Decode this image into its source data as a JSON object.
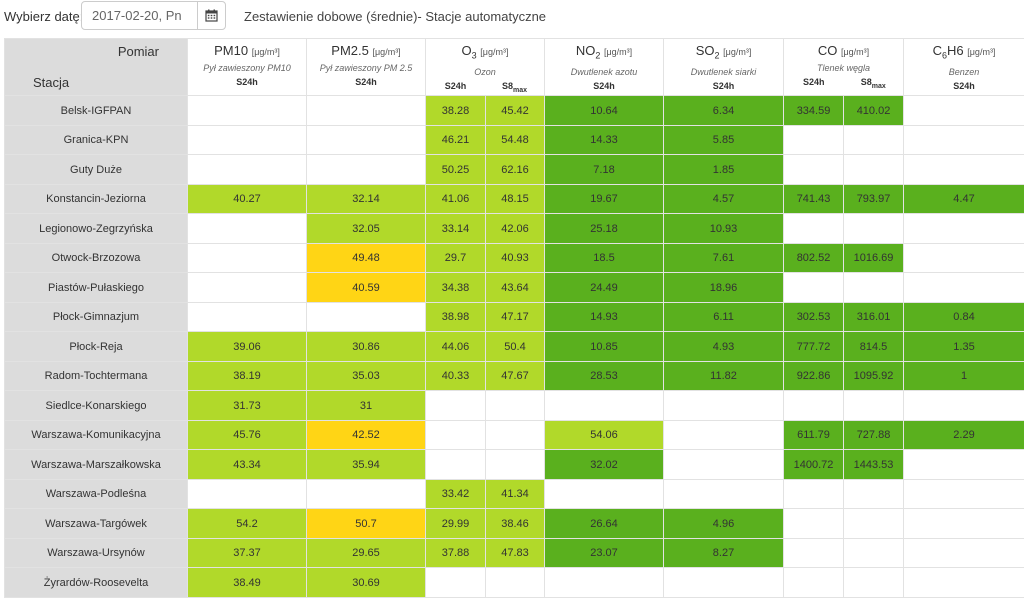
{
  "header": {
    "date_label": "Wybierz datę:",
    "date_value": "2017-02-20, Pn",
    "title": "Zestawienie dobowe (średnie)- Stacje automatyczne"
  },
  "corner": {
    "pomiar": "Pomiar",
    "stacja": "Stacja"
  },
  "pollutants": [
    {
      "name": "PM10",
      "sub": "",
      "tail": "",
      "unit": "[μg/m³]",
      "desc": "Pył zawieszony PM10",
      "cols": [
        {
          "main": "S24h",
          "sub": ""
        }
      ]
    },
    {
      "name": "PM2.5",
      "sub": "",
      "tail": "",
      "unit": "[μg/m³]",
      "desc": "Pył zawieszony PM 2.5",
      "cols": [
        {
          "main": "S24h",
          "sub": ""
        }
      ]
    },
    {
      "name": "O",
      "sub": "3",
      "tail": "",
      "unit": "[μg/m³]",
      "desc": "Ozon",
      "cols": [
        {
          "main": "S24h",
          "sub": ""
        },
        {
          "main": "S8",
          "sub": "max"
        }
      ]
    },
    {
      "name": "NO",
      "sub": "2",
      "tail": "",
      "unit": "[μg/m³]",
      "desc": "Dwutlenek azotu",
      "cols": [
        {
          "main": "S24h",
          "sub": ""
        }
      ]
    },
    {
      "name": "SO",
      "sub": "2",
      "tail": "",
      "unit": "[μg/m³]",
      "desc": "Dwutlenek siarki",
      "cols": [
        {
          "main": "S24h",
          "sub": ""
        }
      ]
    },
    {
      "name": "CO",
      "sub": "",
      "tail": "",
      "unit": "[μg/m³]",
      "desc": "Tlenek węgla",
      "cols": [
        {
          "main": "S24h",
          "sub": ""
        },
        {
          "main": "S8",
          "sub": "max"
        }
      ]
    },
    {
      "name": "C",
      "sub": "6",
      "tail": "H6",
      "unit": "[μg/m³]",
      "desc": "Benzen",
      "cols": [
        {
          "main": "S24h",
          "sub": ""
        }
      ]
    }
  ],
  "legend_colors": {
    "lg": "#b1d92a",
    "dg": "#5ab01e",
    "y": "#ffd515",
    "w": "#ffffff"
  },
  "rows": [
    {
      "station": "Belsk-IGFPAN",
      "cells": [
        {
          "v": "",
          "c": "w"
        },
        {
          "v": "",
          "c": "w"
        },
        {
          "v": "38.28",
          "c": "lg"
        },
        {
          "v": "45.42",
          "c": "lg"
        },
        {
          "v": "10.64",
          "c": "dg"
        },
        {
          "v": "6.34",
          "c": "dg"
        },
        {
          "v": "334.59",
          "c": "dg"
        },
        {
          "v": "410.02",
          "c": "dg"
        },
        {
          "v": "",
          "c": "w"
        }
      ]
    },
    {
      "station": "Granica-KPN",
      "cells": [
        {
          "v": "",
          "c": "w"
        },
        {
          "v": "",
          "c": "w"
        },
        {
          "v": "46.21",
          "c": "lg"
        },
        {
          "v": "54.48",
          "c": "lg"
        },
        {
          "v": "14.33",
          "c": "dg"
        },
        {
          "v": "5.85",
          "c": "dg"
        },
        {
          "v": "",
          "c": "w"
        },
        {
          "v": "",
          "c": "w"
        },
        {
          "v": "",
          "c": "w"
        }
      ]
    },
    {
      "station": "Guty Duże",
      "cells": [
        {
          "v": "",
          "c": "w"
        },
        {
          "v": "",
          "c": "w"
        },
        {
          "v": "50.25",
          "c": "lg"
        },
        {
          "v": "62.16",
          "c": "lg"
        },
        {
          "v": "7.18",
          "c": "dg"
        },
        {
          "v": "1.85",
          "c": "dg"
        },
        {
          "v": "",
          "c": "w"
        },
        {
          "v": "",
          "c": "w"
        },
        {
          "v": "",
          "c": "w"
        }
      ]
    },
    {
      "station": "Konstancin-Jeziorna",
      "cells": [
        {
          "v": "40.27",
          "c": "lg"
        },
        {
          "v": "32.14",
          "c": "lg"
        },
        {
          "v": "41.06",
          "c": "lg"
        },
        {
          "v": "48.15",
          "c": "lg"
        },
        {
          "v": "19.67",
          "c": "dg"
        },
        {
          "v": "4.57",
          "c": "dg"
        },
        {
          "v": "741.43",
          "c": "dg"
        },
        {
          "v": "793.97",
          "c": "dg"
        },
        {
          "v": "4.47",
          "c": "dg"
        }
      ]
    },
    {
      "station": "Legionowo-Zegrzyńska",
      "cells": [
        {
          "v": "",
          "c": "w"
        },
        {
          "v": "32.05",
          "c": "lg"
        },
        {
          "v": "33.14",
          "c": "lg"
        },
        {
          "v": "42.06",
          "c": "lg"
        },
        {
          "v": "25.18",
          "c": "dg"
        },
        {
          "v": "10.93",
          "c": "dg"
        },
        {
          "v": "",
          "c": "w"
        },
        {
          "v": "",
          "c": "w"
        },
        {
          "v": "",
          "c": "w"
        }
      ]
    },
    {
      "station": "Otwock-Brzozowa",
      "cells": [
        {
          "v": "",
          "c": "w"
        },
        {
          "v": "49.48",
          "c": "y"
        },
        {
          "v": "29.7",
          "c": "lg"
        },
        {
          "v": "40.93",
          "c": "lg"
        },
        {
          "v": "18.5",
          "c": "dg"
        },
        {
          "v": "7.61",
          "c": "dg"
        },
        {
          "v": "802.52",
          "c": "dg"
        },
        {
          "v": "1016.69",
          "c": "dg"
        },
        {
          "v": "",
          "c": "w"
        }
      ]
    },
    {
      "station": "Piastów-Pułaskiego",
      "cells": [
        {
          "v": "",
          "c": "w"
        },
        {
          "v": "40.59",
          "c": "y"
        },
        {
          "v": "34.38",
          "c": "lg"
        },
        {
          "v": "43.64",
          "c": "lg"
        },
        {
          "v": "24.49",
          "c": "dg"
        },
        {
          "v": "18.96",
          "c": "dg"
        },
        {
          "v": "",
          "c": "w"
        },
        {
          "v": "",
          "c": "w"
        },
        {
          "v": "",
          "c": "w"
        }
      ]
    },
    {
      "station": "Płock-Gimnazjum",
      "cells": [
        {
          "v": "",
          "c": "w"
        },
        {
          "v": "",
          "c": "w"
        },
        {
          "v": "38.98",
          "c": "lg"
        },
        {
          "v": "47.17",
          "c": "lg"
        },
        {
          "v": "14.93",
          "c": "dg"
        },
        {
          "v": "6.11",
          "c": "dg"
        },
        {
          "v": "302.53",
          "c": "dg"
        },
        {
          "v": "316.01",
          "c": "dg"
        },
        {
          "v": "0.84",
          "c": "dg"
        }
      ]
    },
    {
      "station": "Płock-Reja",
      "cells": [
        {
          "v": "39.06",
          "c": "lg"
        },
        {
          "v": "30.86",
          "c": "lg"
        },
        {
          "v": "44.06",
          "c": "lg"
        },
        {
          "v": "50.4",
          "c": "lg"
        },
        {
          "v": "10.85",
          "c": "dg"
        },
        {
          "v": "4.93",
          "c": "dg"
        },
        {
          "v": "777.72",
          "c": "dg"
        },
        {
          "v": "814.5",
          "c": "dg"
        },
        {
          "v": "1.35",
          "c": "dg"
        }
      ]
    },
    {
      "station": "Radom-Tochtermana",
      "cells": [
        {
          "v": "38.19",
          "c": "lg"
        },
        {
          "v": "35.03",
          "c": "lg"
        },
        {
          "v": "40.33",
          "c": "lg"
        },
        {
          "v": "47.67",
          "c": "lg"
        },
        {
          "v": "28.53",
          "c": "dg"
        },
        {
          "v": "11.82",
          "c": "dg"
        },
        {
          "v": "922.86",
          "c": "dg"
        },
        {
          "v": "1095.92",
          "c": "dg"
        },
        {
          "v": "1",
          "c": "dg"
        }
      ]
    },
    {
      "station": "Siedlce-Konarskiego",
      "cells": [
        {
          "v": "31.73",
          "c": "lg"
        },
        {
          "v": "31",
          "c": "lg"
        },
        {
          "v": "",
          "c": "w"
        },
        {
          "v": "",
          "c": "w"
        },
        {
          "v": "",
          "c": "w"
        },
        {
          "v": "",
          "c": "w"
        },
        {
          "v": "",
          "c": "w"
        },
        {
          "v": "",
          "c": "w"
        },
        {
          "v": "",
          "c": "w"
        }
      ]
    },
    {
      "station": "Warszawa-Komunikacyjna",
      "cells": [
        {
          "v": "45.76",
          "c": "lg"
        },
        {
          "v": "42.52",
          "c": "y"
        },
        {
          "v": "",
          "c": "w"
        },
        {
          "v": "",
          "c": "w"
        },
        {
          "v": "54.06",
          "c": "lg"
        },
        {
          "v": "",
          "c": "w"
        },
        {
          "v": "611.79",
          "c": "dg"
        },
        {
          "v": "727.88",
          "c": "dg"
        },
        {
          "v": "2.29",
          "c": "dg"
        }
      ]
    },
    {
      "station": "Warszawa-Marszałkowska",
      "cells": [
        {
          "v": "43.34",
          "c": "lg"
        },
        {
          "v": "35.94",
          "c": "lg"
        },
        {
          "v": "",
          "c": "w"
        },
        {
          "v": "",
          "c": "w"
        },
        {
          "v": "32.02",
          "c": "dg"
        },
        {
          "v": "",
          "c": "w"
        },
        {
          "v": "1400.72",
          "c": "dg"
        },
        {
          "v": "1443.53",
          "c": "dg"
        },
        {
          "v": "",
          "c": "w"
        }
      ]
    },
    {
      "station": "Warszawa-Podleśna",
      "cells": [
        {
          "v": "",
          "c": "w"
        },
        {
          "v": "",
          "c": "w"
        },
        {
          "v": "33.42",
          "c": "lg"
        },
        {
          "v": "41.34",
          "c": "lg"
        },
        {
          "v": "",
          "c": "w"
        },
        {
          "v": "",
          "c": "w"
        },
        {
          "v": "",
          "c": "w"
        },
        {
          "v": "",
          "c": "w"
        },
        {
          "v": "",
          "c": "w"
        }
      ]
    },
    {
      "station": "Warszawa-Targówek",
      "cells": [
        {
          "v": "54.2",
          "c": "lg"
        },
        {
          "v": "50.7",
          "c": "y"
        },
        {
          "v": "29.99",
          "c": "lg"
        },
        {
          "v": "38.46",
          "c": "lg"
        },
        {
          "v": "26.64",
          "c": "dg"
        },
        {
          "v": "4.96",
          "c": "dg"
        },
        {
          "v": "",
          "c": "w"
        },
        {
          "v": "",
          "c": "w"
        },
        {
          "v": "",
          "c": "w"
        }
      ]
    },
    {
      "station": "Warszawa-Ursynów",
      "cells": [
        {
          "v": "37.37",
          "c": "lg"
        },
        {
          "v": "29.65",
          "c": "lg"
        },
        {
          "v": "37.88",
          "c": "lg"
        },
        {
          "v": "47.83",
          "c": "lg"
        },
        {
          "v": "23.07",
          "c": "dg"
        },
        {
          "v": "8.27",
          "c": "dg"
        },
        {
          "v": "",
          "c": "w"
        },
        {
          "v": "",
          "c": "w"
        },
        {
          "v": "",
          "c": "w"
        }
      ]
    },
    {
      "station": "Żyrardów-Roosevelta",
      "cells": [
        {
          "v": "38.49",
          "c": "lg"
        },
        {
          "v": "30.69",
          "c": "lg"
        },
        {
          "v": "",
          "c": "w"
        },
        {
          "v": "",
          "c": "w"
        },
        {
          "v": "",
          "c": "w"
        },
        {
          "v": "",
          "c": "w"
        },
        {
          "v": "",
          "c": "w"
        },
        {
          "v": "",
          "c": "w"
        },
        {
          "v": "",
          "c": "w"
        }
      ]
    }
  ]
}
